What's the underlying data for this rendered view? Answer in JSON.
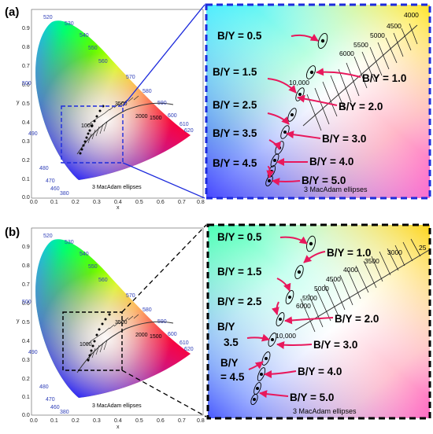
{
  "panels": [
    {
      "label": "(a)",
      "box_color": "#1d2bdc",
      "axis": {
        "x_ticks": [
          "0.0",
          "0.1",
          "0.2",
          "0.3",
          "0.4",
          "0.5",
          "0.6",
          "0.7",
          "0.8"
        ],
        "y_ticks": [
          "0.0",
          "0.1",
          "0.2",
          "0.3",
          "0.4",
          "0.5",
          "0.6",
          "0.7",
          "0.8",
          "0.9"
        ],
        "x_label": "x",
        "y_label": "y"
      },
      "wavelengths": [
        "520",
        "530",
        "540",
        "550",
        "560",
        "570",
        "580",
        "590",
        "600",
        "610",
        "620",
        "500",
        "490",
        "480",
        "470",
        "460",
        "380"
      ],
      "cct_small": [
        "3500",
        "2000",
        "1500",
        "1000"
      ],
      "note": "3  MacAdam ellipses",
      "by_labels": [
        "B/Y = 0.5",
        "B/Y = 1.5",
        "B/Y = 1.0",
        "B/Y = 2.5",
        "B/Y = 2.0",
        "B/Y = 3.5",
        "B/Y = 3.0",
        "B/Y = 4.5",
        "B/Y = 4.0",
        "B/Y = 5.0"
      ],
      "zoom_cct": [
        "4000",
        "4500",
        "5000",
        "5500",
        "6000",
        "10,000"
      ]
    },
    {
      "label": "(b)",
      "box_color": "#000000",
      "axis": {
        "x_ticks": [
          "0.0",
          "0.1",
          "0.2",
          "0.3",
          "0.4",
          "0.5",
          "0.6",
          "0.7",
          "0.8"
        ],
        "y_ticks": [
          "0.0",
          "0.1",
          "0.2",
          "0.3",
          "0.4",
          "0.5",
          "0.6",
          "0.7",
          "0.8",
          "0.9"
        ],
        "x_label": "x",
        "y_label": "y"
      },
      "wavelengths": [
        "520",
        "530",
        "540",
        "550",
        "560",
        "570",
        "580",
        "590",
        "600",
        "610",
        "620",
        "500",
        "490",
        "480",
        "470",
        "460",
        "380"
      ],
      "cct_small": [
        "3500",
        "2000",
        "1500",
        "1000"
      ],
      "note": "3  MacAdam ellipses",
      "by_labels": [
        "B/Y = 0.5",
        "B/Y = 1.0",
        "B/Y = 1.5",
        "B/Y = 2.5",
        "B/Y = 2.0",
        "B/Y",
        "3.5",
        "B/Y = 3.0",
        "B/Y",
        "= 4.5",
        "B/Y = 4.0",
        "B/Y = 5.0"
      ],
      "zoom_cct": [
        "25",
        "3000",
        "3500",
        "4000",
        "4500",
        "5000",
        "5500",
        "6000",
        "10,000"
      ]
    }
  ]
}
